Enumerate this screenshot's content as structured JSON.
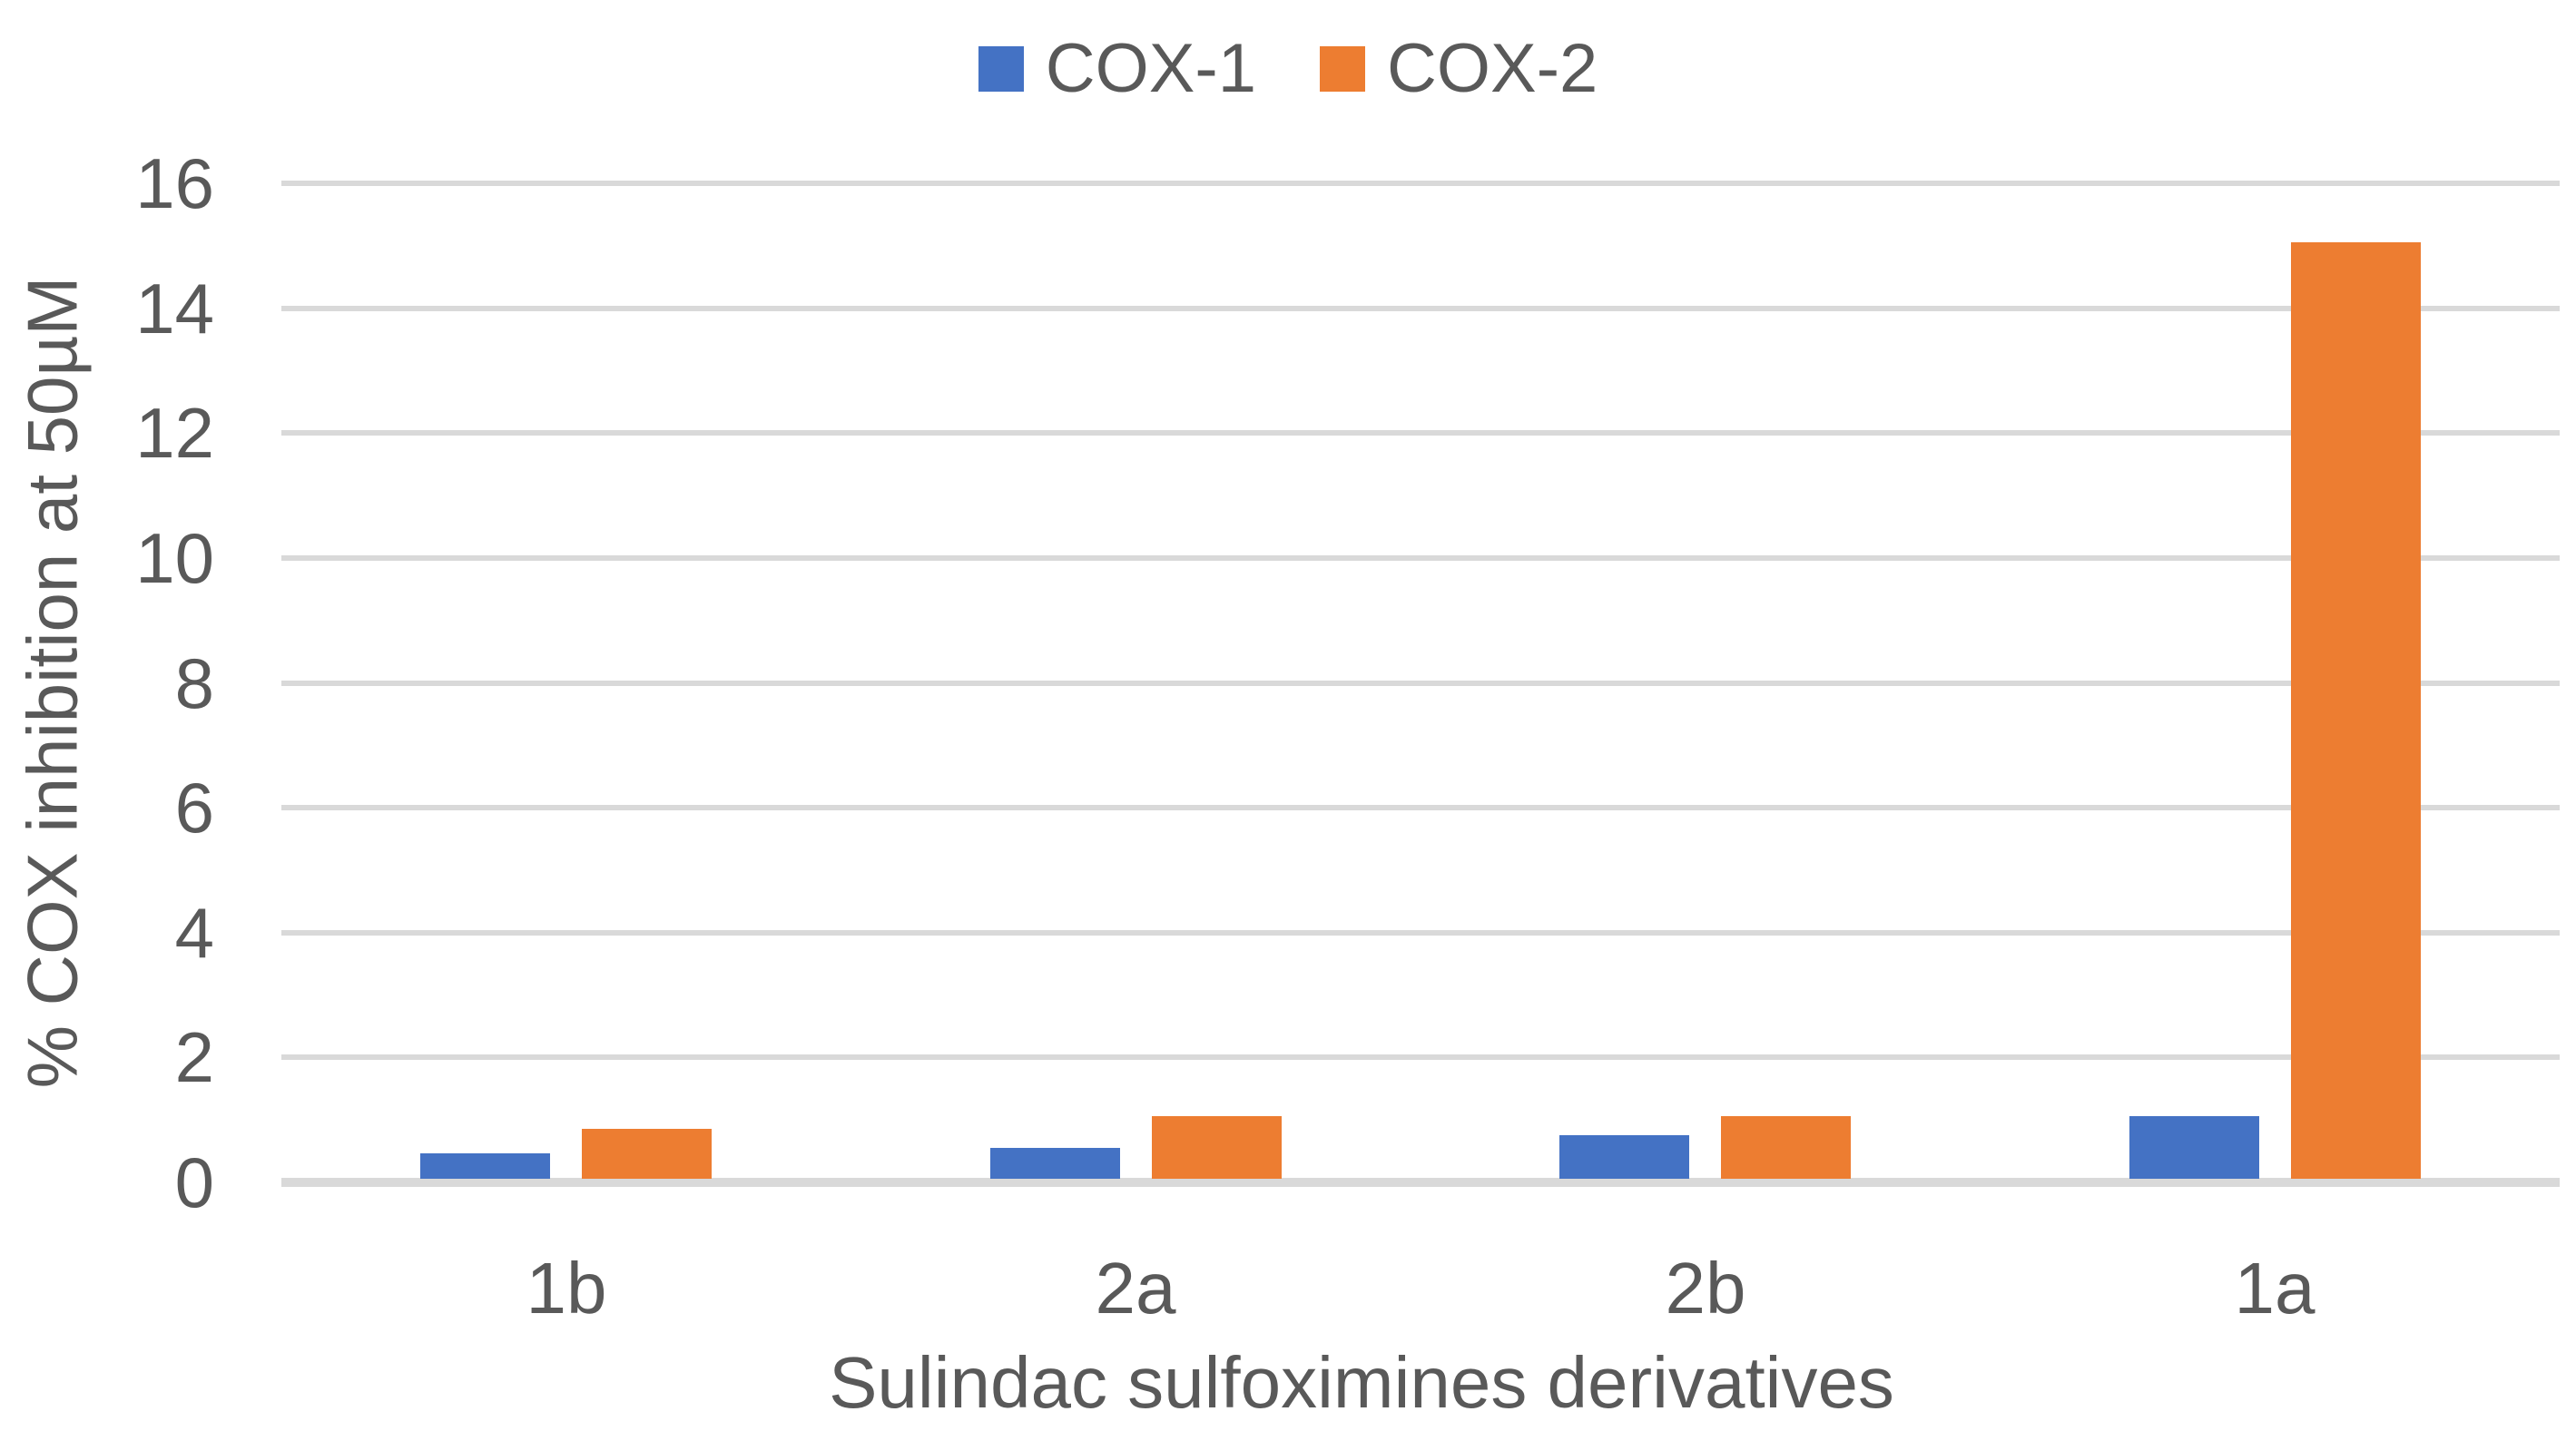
{
  "chart_data": {
    "type": "bar",
    "title": "",
    "categories": [
      "1b",
      "2a",
      "2b",
      "1a"
    ],
    "series": [
      {
        "name": "COX-1",
        "color": "#4472C4",
        "values": [
          0.4,
          0.5,
          0.7,
          1.0
        ]
      },
      {
        "name": "COX-2",
        "color": "#ED7D31",
        "values": [
          0.8,
          1.0,
          1.0,
          15.0
        ]
      }
    ],
    "xlabel": "Sulindac sulfoximines derivatives",
    "ylabel": "% COX inhibition at 50µM",
    "ylim": [
      0,
      16
    ],
    "yticks": [
      0,
      2,
      4,
      6,
      8,
      10,
      12,
      14,
      16
    ],
    "grid": "horizontal",
    "legend_position": "top",
    "colors": {
      "text": "#595959",
      "gridline": "#D9D9D9",
      "background": "#FFFFFF"
    }
  }
}
